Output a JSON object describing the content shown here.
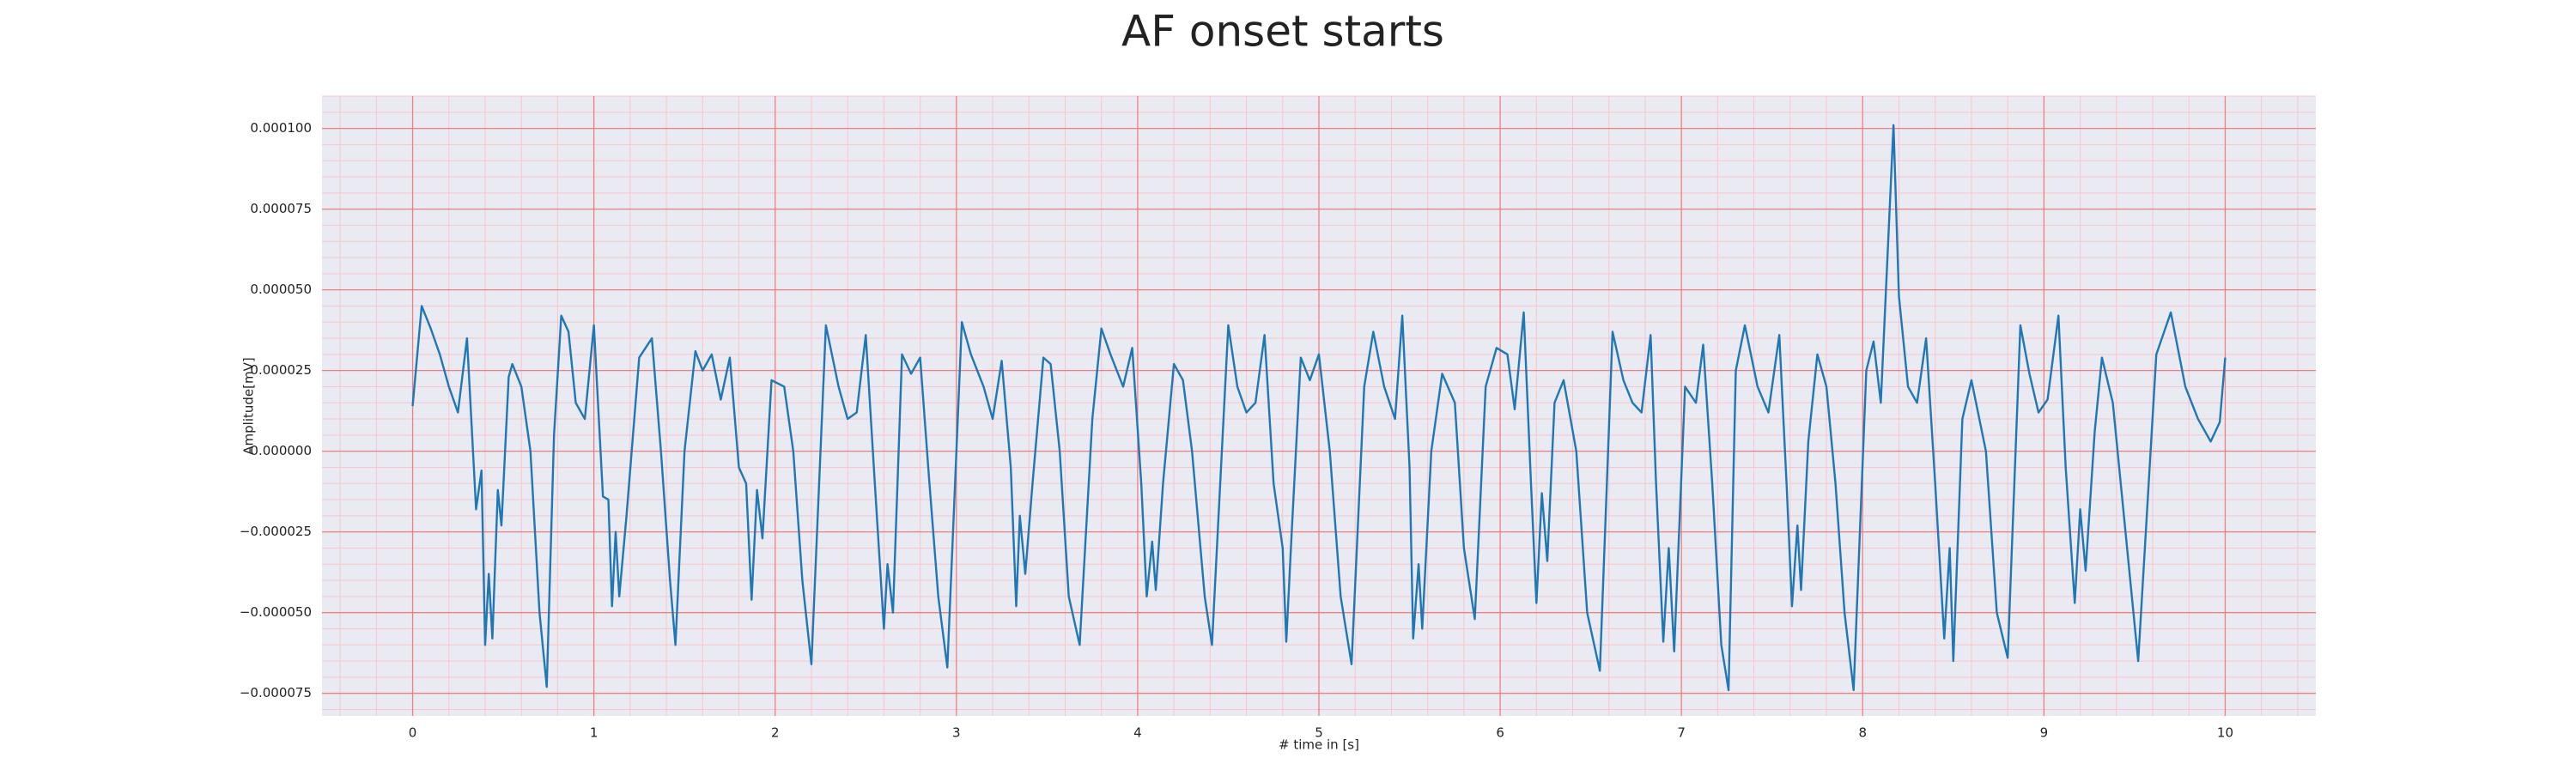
{
  "chart_data": {
    "type": "line",
    "title": "AF onset starts",
    "xlabel": "# time in [s]",
    "ylabel": "Amplitude[mV]",
    "color": "#1f77b4",
    "grid": true,
    "grid_color": "#f08080",
    "minor_grid": {
      "x_step": 0.2,
      "y_step": 5e-06,
      "color": "#f6c6cc"
    },
    "background": "#eaeaf2",
    "xlim": [
      -0.5,
      10.5
    ],
    "ylim": [
      -8.2e-05,
      0.00011
    ],
    "xticks": [
      0,
      1,
      2,
      3,
      4,
      5,
      6,
      7,
      8,
      9,
      10
    ],
    "yticks": [
      {
        "value": -7.5e-05,
        "label": "−0.000075"
      },
      {
        "value": -5e-05,
        "label": "−0.000050"
      },
      {
        "value": -2.5e-05,
        "label": "−0.000025"
      },
      {
        "value": 0,
        "label": "0.000000"
      },
      {
        "value": 2.5e-05,
        "label": "0.000025"
      },
      {
        "value": 5e-05,
        "label": "0.000050"
      },
      {
        "value": 7.5e-05,
        "label": "0.000075"
      },
      {
        "value": 0.0001,
        "label": "0.000100"
      }
    ],
    "x": [
      0.0,
      0.05,
      0.1,
      0.15,
      0.2,
      0.25,
      0.3,
      0.35,
      0.38,
      0.4,
      0.42,
      0.44,
      0.47,
      0.49,
      0.53,
      0.55,
      0.6,
      0.65,
      0.7,
      0.74,
      0.78,
      0.82,
      0.86,
      0.9,
      0.95,
      1.0,
      1.05,
      1.08,
      1.1,
      1.12,
      1.14,
      1.18,
      1.25,
      1.32,
      1.37,
      1.42,
      1.45,
      1.5,
      1.56,
      1.6,
      1.65,
      1.7,
      1.75,
      1.8,
      1.84,
      1.87,
      1.9,
      1.93,
      1.98,
      2.05,
      2.1,
      2.15,
      2.2,
      2.28,
      2.35,
      2.4,
      2.45,
      2.5,
      2.55,
      2.6,
      2.62,
      2.65,
      2.7,
      2.75,
      2.8,
      2.85,
      2.9,
      2.95,
      3.03,
      3.08,
      3.15,
      3.2,
      3.25,
      3.3,
      3.33,
      3.35,
      3.38,
      3.42,
      3.48,
      3.52,
      3.57,
      3.62,
      3.68,
      3.75,
      3.8,
      3.85,
      3.92,
      3.97,
      4.02,
      4.05,
      4.08,
      4.1,
      4.14,
      4.2,
      4.25,
      4.3,
      4.37,
      4.41,
      4.5,
      4.55,
      4.6,
      4.65,
      4.7,
      4.75,
      4.8,
      4.82,
      4.85,
      4.9,
      4.95,
      5.0,
      5.06,
      5.12,
      5.18,
      5.25,
      5.3,
      5.36,
      5.42,
      5.46,
      5.5,
      5.52,
      5.55,
      5.57,
      5.62,
      5.68,
      5.75,
      5.8,
      5.86,
      5.92,
      5.98,
      6.04,
      6.08,
      6.13,
      6.17,
      6.2,
      6.23,
      6.26,
      6.3,
      6.35,
      6.42,
      6.48,
      6.55,
      6.62,
      6.68,
      6.73,
      6.78,
      6.83,
      6.86,
      6.9,
      6.93,
      6.96,
      7.02,
      7.08,
      7.12,
      7.17,
      7.22,
      7.26,
      7.3,
      7.35,
      7.42,
      7.48,
      7.54,
      7.58,
      7.61,
      7.64,
      7.66,
      7.7,
      7.75,
      7.8,
      7.85,
      7.9,
      7.95,
      8.02,
      8.06,
      8.1,
      8.17,
      8.2,
      8.25,
      8.3,
      8.35,
      8.4,
      8.45,
      8.48,
      8.5,
      8.55,
      8.6,
      8.68,
      8.74,
      8.8,
      8.87,
      8.92,
      8.97,
      9.02,
      9.08,
      9.12,
      9.17,
      9.2,
      9.23,
      9.28,
      9.32,
      9.38,
      9.45,
      9.52,
      9.62,
      9.7,
      9.78,
      9.85,
      9.92,
      9.97,
      10.0
    ],
    "values": [
      1.4e-05,
      4.5e-05,
      3.8e-05,
      3e-05,
      2e-05,
      1.2e-05,
      3.5e-05,
      -1.8e-05,
      -6e-06,
      -6e-05,
      -3.8e-05,
      -5.8e-05,
      -1.2e-05,
      -2.3e-05,
      2.3e-05,
      2.7e-05,
      2e-05,
      0.0,
      -5e-05,
      -7.3e-05,
      5e-06,
      4.2e-05,
      3.7e-05,
      1.5e-05,
      1e-05,
      3.9e-05,
      -1.4e-05,
      -1.5e-05,
      -4.8e-05,
      -2.5e-05,
      -4.5e-05,
      -2e-05,
      2.9e-05,
      3.5e-05,
      0.0,
      -4e-05,
      -6e-05,
      0.0,
      3.1e-05,
      2.5e-05,
      3e-05,
      1.6e-05,
      2.9e-05,
      -5e-06,
      -1e-05,
      -4.6e-05,
      -1.2e-05,
      -2.7e-05,
      2.2e-05,
      2e-05,
      0.0,
      -4e-05,
      -6.6e-05,
      3.9e-05,
      2e-05,
      1e-05,
      1.2e-05,
      3.6e-05,
      -1e-05,
      -5.5e-05,
      -3.5e-05,
      -5e-05,
      3e-05,
      2.4e-05,
      2.9e-05,
      -9e-06,
      -4.5e-05,
      -6.7e-05,
      4e-05,
      3e-05,
      2e-05,
      1e-05,
      2.8e-05,
      -5e-06,
      -4.8e-05,
      -2e-05,
      -3.8e-05,
      -1e-05,
      2.9e-05,
      2.7e-05,
      0.0,
      -4.5e-05,
      -6e-05,
      1e-05,
      3.8e-05,
      3e-05,
      2e-05,
      3.2e-05,
      -1e-05,
      -4.5e-05,
      -2.8e-05,
      -4.3e-05,
      -1e-05,
      2.7e-05,
      2.2e-05,
      0.0,
      -4.5e-05,
      -6e-05,
      3.9e-05,
      2e-05,
      1.2e-05,
      1.5e-05,
      3.6e-05,
      -1e-05,
      -3e-05,
      -5.9e-05,
      -2.5e-05,
      2.9e-05,
      2.2e-05,
      3e-05,
      0.0,
      -4.5e-05,
      -6.6e-05,
      2e-05,
      3.7e-05,
      2e-05,
      1e-05,
      4.2e-05,
      -5e-06,
      -5.8e-05,
      -3.5e-05,
      -5.5e-05,
      0.0,
      2.4e-05,
      1.5e-05,
      -3e-05,
      -5.2e-05,
      2e-05,
      3.2e-05,
      3e-05,
      1.3e-05,
      4.3e-05,
      -1e-05,
      -4.7e-05,
      -1.3e-05,
      -3.4e-05,
      1.5e-05,
      2.2e-05,
      0.0,
      -5e-05,
      -6.8e-05,
      3.7e-05,
      2.2e-05,
      1.5e-05,
      1.2e-05,
      3.6e-05,
      -1e-05,
      -5.9e-05,
      -3e-05,
      -6.2e-05,
      2e-05,
      1.5e-05,
      3.3e-05,
      -1e-05,
      -6e-05,
      -7.4e-05,
      2.5e-05,
      3.9e-05,
      2e-05,
      1.2e-05,
      3.6e-05,
      -1e-05,
      -4.8e-05,
      -2.3e-05,
      -4.3e-05,
      3e-06,
      3e-05,
      2e-05,
      -1e-05,
      -5e-05,
      -7.4e-05,
      2.5e-05,
      3.4e-05,
      1.5e-05,
      0.000101,
      4.8e-05,
      2e-05,
      1.5e-05,
      3.5e-05,
      -1e-05,
      -5.8e-05,
      -3e-05,
      -6.5e-05,
      1e-05,
      2.2e-05,
      0.0,
      -5e-05,
      -6.4e-05,
      3.9e-05,
      2.4e-05,
      1.2e-05,
      1.6e-05,
      4.2e-05,
      -5e-06,
      -4.7e-05,
      -1.8e-05,
      -3.7e-05,
      6e-06,
      2.9e-05,
      1.5e-05,
      -2.5e-05,
      -6.5e-05,
      3e-05,
      4.3e-05,
      2e-05,
      1e-05,
      3e-06,
      9e-06,
      2.9e-05
    ]
  }
}
